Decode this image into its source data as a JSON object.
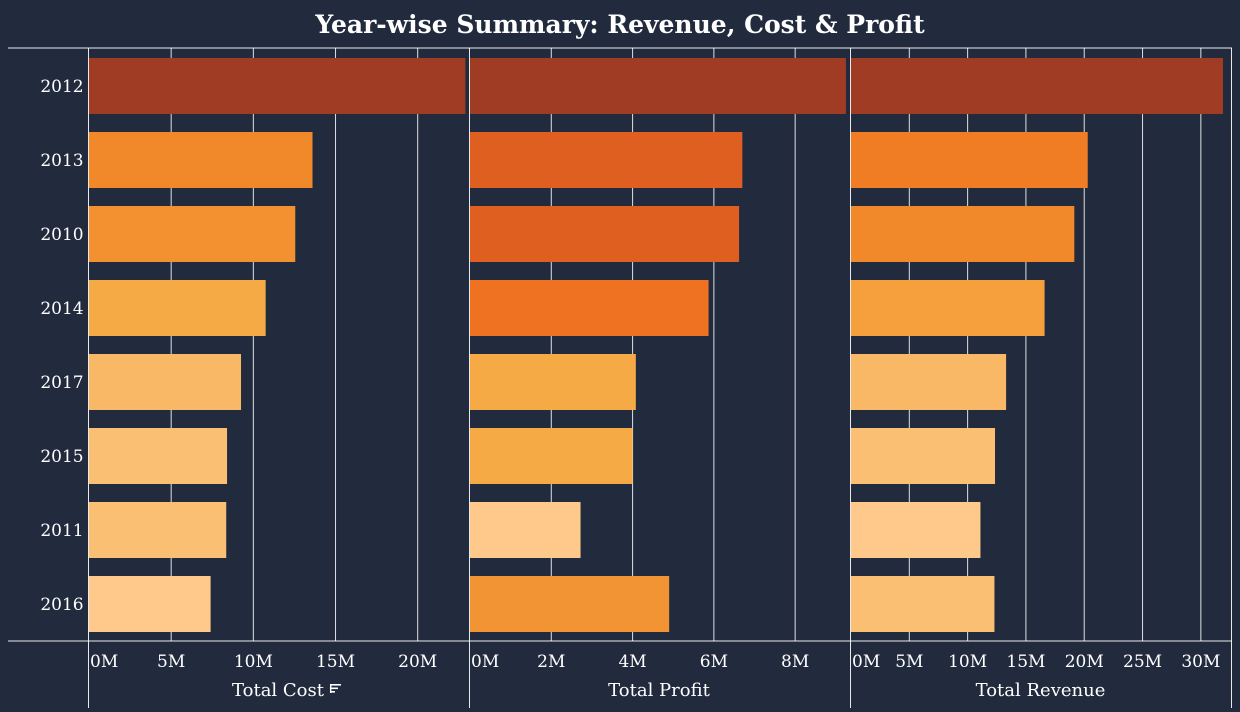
{
  "chart_data": {
    "type": "bar",
    "title": "Year-wise Summary: Revenue, Cost & Profit",
    "orientation": "horizontal",
    "categories": [
      "2012",
      "2013",
      "2010",
      "2014",
      "2017",
      "2015",
      "2011",
      "2016"
    ],
    "sort_indicator_icon": "sort-descending-icon",
    "grid": true,
    "panels": [
      {
        "name": "cost",
        "xlabel": "Total Cost",
        "sorted_by": true,
        "xlim": [
          0,
          23000000
        ],
        "ticks": [
          0,
          5000000,
          10000000,
          15000000,
          20000000
        ],
        "tick_labels": [
          "0M",
          "5M",
          "10M",
          "15M",
          "20M"
        ],
        "values": [
          22900000,
          13600000,
          12550000,
          10750000,
          9250000,
          8400000,
          8350000,
          7400000
        ],
        "colors": [
          "#a03c24",
          "#f18829",
          "#f39030",
          "#f5aa45",
          "#f8b866",
          "#fbbf73",
          "#fbbf73",
          "#fec98a"
        ]
      },
      {
        "name": "profit",
        "xlabel": "Total Profit",
        "sorted_by": false,
        "xlim": [
          0,
          9300000
        ],
        "ticks": [
          0,
          2000000,
          4000000,
          6000000,
          8000000
        ],
        "tick_labels": [
          "0M",
          "2M",
          "4M",
          "6M",
          "8M"
        ],
        "values": [
          9250000,
          6700000,
          6620000,
          5870000,
          4080000,
          4000000,
          2720000,
          4900000
        ],
        "colors": [
          "#a03c24",
          "#df5f20",
          "#df5f20",
          "#ee7222",
          "#f5aa45",
          "#f5aa45",
          "#fec98a",
          "#f39434"
        ]
      },
      {
        "name": "revenue",
        "xlabel": "Total Revenue",
        "sorted_by": false,
        "xlim": [
          0,
          32500000
        ],
        "ticks": [
          0,
          5000000,
          10000000,
          15000000,
          20000000,
          25000000,
          30000000
        ],
        "tick_labels": [
          "0M",
          "5M",
          "10M",
          "15M",
          "20M",
          "25M",
          "30M"
        ],
        "values": [
          31900000,
          20300000,
          19150000,
          16600000,
          13300000,
          12350000,
          11100000,
          12300000
        ],
        "colors": [
          "#a03c24",
          "#f07c24",
          "#f18829",
          "#f5a03c",
          "#f8b866",
          "#fbbf73",
          "#fec98a",
          "#fbbf73"
        ]
      }
    ]
  },
  "colors": {
    "background": "#222b3e",
    "gridline": "#ffffff",
    "text": "#ffffff"
  }
}
